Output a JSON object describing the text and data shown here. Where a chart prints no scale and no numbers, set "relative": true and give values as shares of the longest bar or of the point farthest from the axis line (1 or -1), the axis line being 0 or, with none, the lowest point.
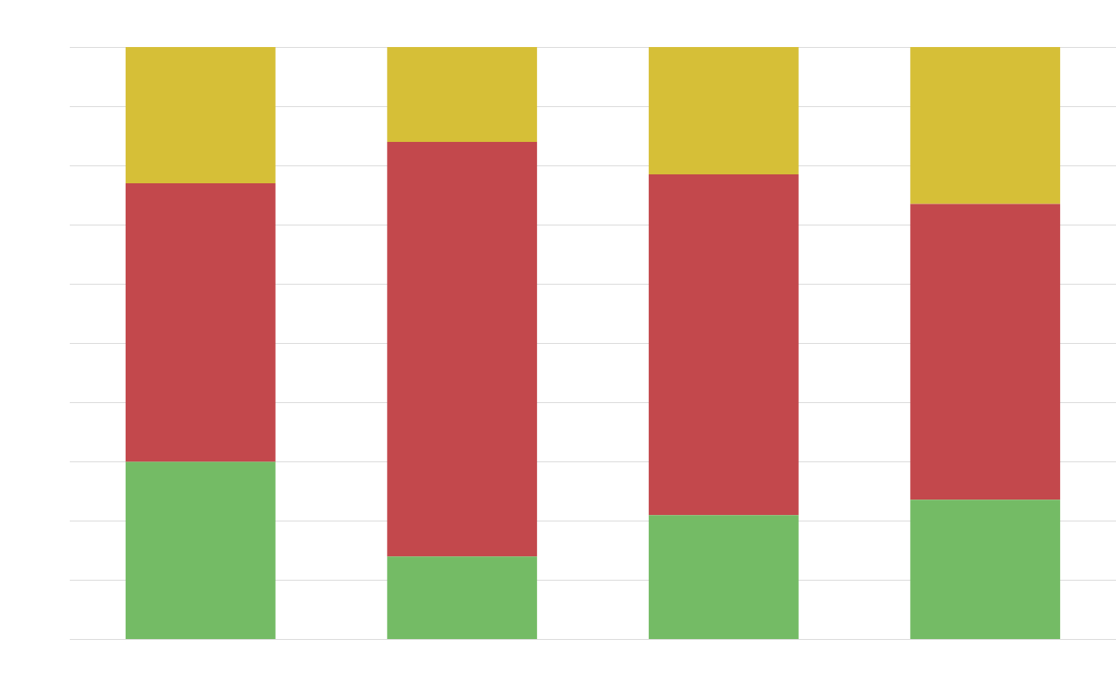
{
  "chart_data": {
    "type": "bar",
    "relative": true,
    "stacked": true,
    "grid": "y",
    "legend": false,
    "categories": [
      null,
      null,
      null,
      null
    ],
    "series": [
      {
        "color": "#74bb65",
        "values": [
          0.3,
          0.14,
          0.21,
          0.236
        ]
      },
      {
        "color": "#c3484c",
        "values": [
          0.47,
          0.7,
          0.575,
          0.499
        ]
      },
      {
        "color": "#d6bf37",
        "values": [
          0.23,
          0.16,
          0.215,
          0.265
        ]
      }
    ]
  }
}
